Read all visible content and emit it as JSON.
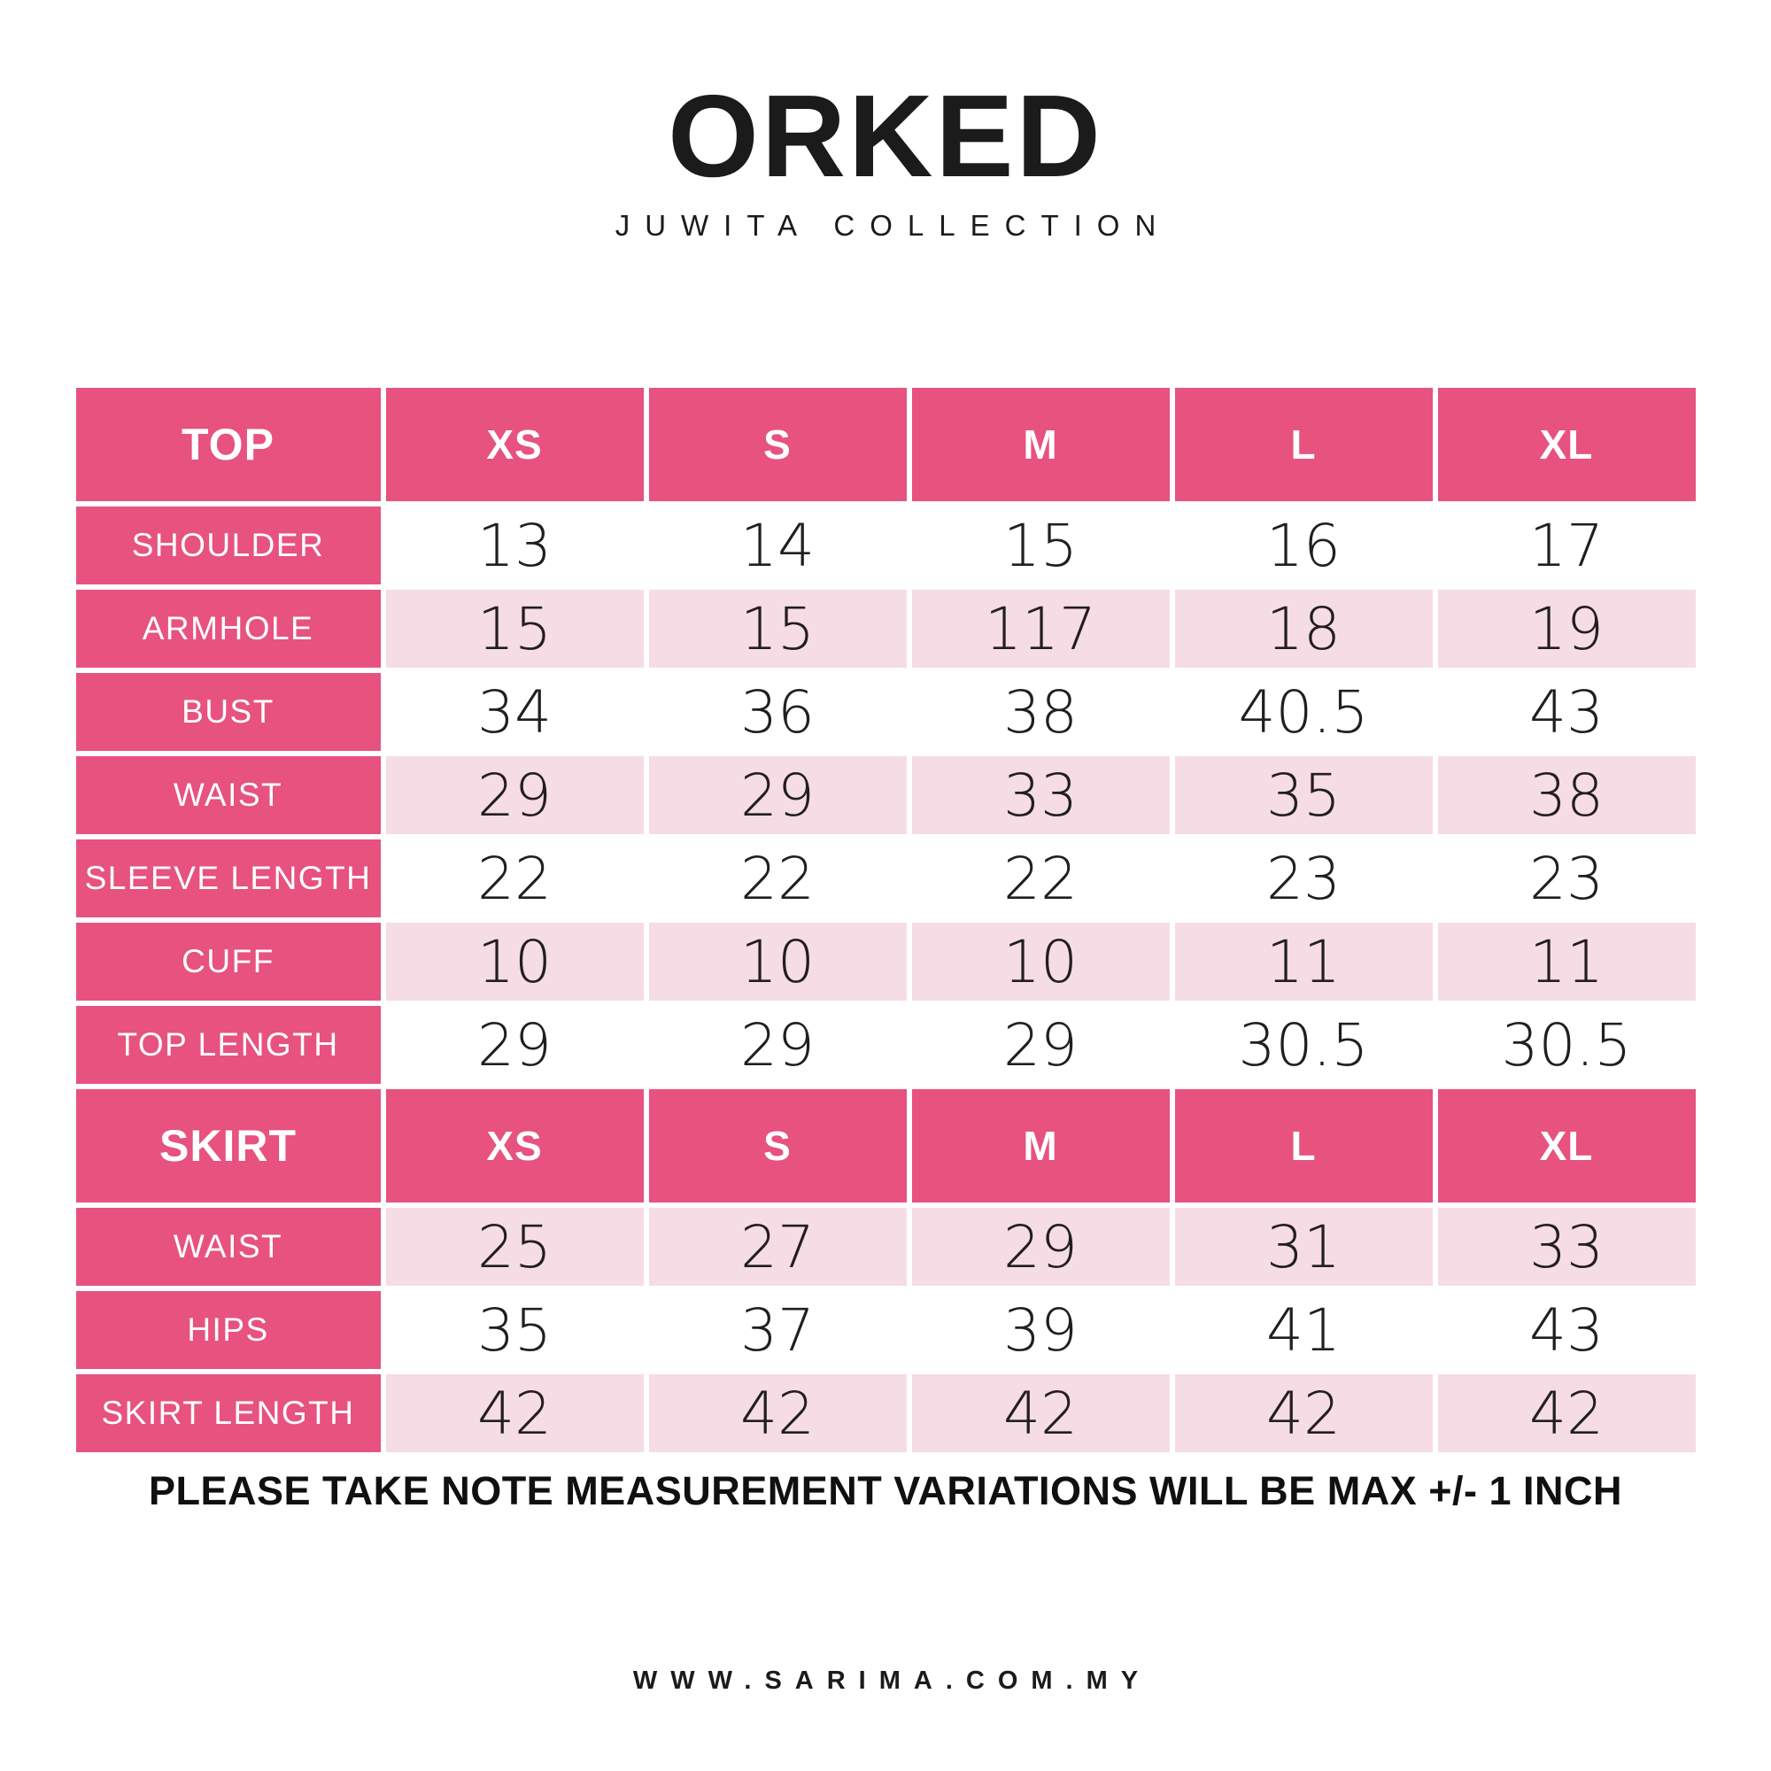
{
  "brand": {
    "title": "ORKED",
    "subtitle": "JUWITA COLLECTION"
  },
  "tables": [
    {
      "section": "TOP",
      "sizes": [
        "XS",
        "S",
        "M",
        "L",
        "XL"
      ],
      "rows": [
        {
          "label": "SHOULDER",
          "values": [
            "13",
            "14",
            "15",
            "16",
            "17"
          ]
        },
        {
          "label": "ARMHOLE",
          "values": [
            "15",
            "15",
            "117",
            "18",
            "19"
          ]
        },
        {
          "label": "BUST",
          "values": [
            "34",
            "36",
            "38",
            "40.5",
            "43"
          ]
        },
        {
          "label": "WAIST",
          "values": [
            "29",
            "29",
            "33",
            "35",
            "38"
          ]
        },
        {
          "label": "SLEEVE LENGTH",
          "values": [
            "22",
            "22",
            "22",
            "23",
            "23"
          ]
        },
        {
          "label": "CUFF",
          "values": [
            "10",
            "10",
            "10",
            "11",
            "11"
          ]
        },
        {
          "label": "TOP LENGTH",
          "values": [
            "29",
            "29",
            "29",
            "30.5",
            "30.5"
          ]
        }
      ]
    },
    {
      "section": "SKIRT",
      "sizes": [
        "XS",
        "S",
        "M",
        "L",
        "XL"
      ],
      "rows": [
        {
          "label": "WAIST",
          "values": [
            "25",
            "27",
            "29",
            "31",
            "33"
          ]
        },
        {
          "label": "HIPS",
          "values": [
            "35",
            "37",
            "39",
            "41",
            "43"
          ]
        },
        {
          "label": "SKIRT LENGTH",
          "values": [
            "42",
            "42",
            "42",
            "42",
            "42"
          ]
        }
      ]
    }
  ],
  "note": "PLEASE TAKE NOTE MEASUREMENT VARIATIONS WILL BE MAX +/- 1 INCH",
  "footer": {
    "website": "WWW.SARIMA.COM.MY"
  },
  "colors": {
    "header_pink": "#E7527F",
    "row_pink": "#F6DCE4",
    "text_dark": "#221E20"
  }
}
